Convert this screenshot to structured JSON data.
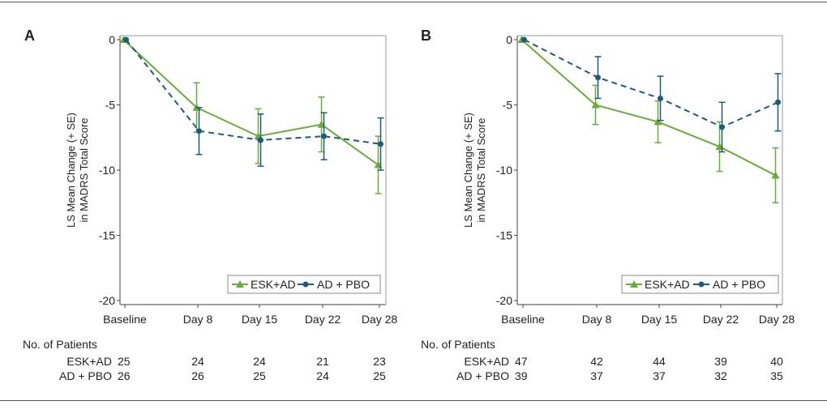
{
  "legend_labels": {
    "esk": "ESK+AD",
    "pbo": "AD + PBO"
  },
  "colors": {
    "esk": "#6aac3a",
    "pbo": "#1f5a7a",
    "axis": "#444444"
  },
  "patients_header": "No. of Patients",
  "chart_data": [
    {
      "panel": "A",
      "type": "line",
      "ylabel_line1": "LS Mean Change (+ SE)",
      "ylabel_line2": "in MADRS Total Score",
      "categories": [
        "Baseline",
        "Day 8",
        "Day 15",
        "Day 22",
        "Day 28"
      ],
      "ylim": [
        -20,
        0
      ],
      "yticks": [
        0,
        -5,
        -10,
        -15,
        -20
      ],
      "ytick_labels": [
        "0",
        "-5",
        "-10",
        "-15",
        "-20"
      ],
      "grid": false,
      "legend_position": "bottom-right",
      "series": [
        {
          "name": "ESK+AD",
          "key": "esk",
          "marker": "triangle",
          "dash": "solid",
          "values": [
            0,
            -5.2,
            -7.4,
            -6.5,
            -9.6
          ],
          "se": [
            0,
            1.9,
            2.1,
            2.1,
            2.2
          ]
        },
        {
          "name": "AD + PBO",
          "key": "pbo",
          "marker": "circle",
          "dash": "dashed",
          "values": [
            0,
            -7.0,
            -7.7,
            -7.4,
            -8.0
          ],
          "se": [
            0,
            1.8,
            2.0,
            1.8,
            2.0
          ]
        }
      ],
      "patients": [
        {
          "label": "ESK+AD",
          "counts": [
            "25",
            "24",
            "24",
            "21",
            "23"
          ]
        },
        {
          "label": "AD + PBO",
          "counts": [
            "26",
            "26",
            "25",
            "24",
            "25"
          ]
        }
      ]
    },
    {
      "panel": "B",
      "type": "line",
      "ylabel_line1": "LS Mean Change (+ SE)",
      "ylabel_line2": "in MADRS Total Score",
      "categories": [
        "Baseline",
        "Day 8",
        "Day 15",
        "Day 22",
        "Day 28"
      ],
      "ylim": [
        -20,
        0
      ],
      "yticks": [
        0,
        -5,
        -10,
        -15,
        -20
      ],
      "ytick_labels": [
        "0",
        "-5",
        "-10",
        "-15",
        "-20"
      ],
      "grid": false,
      "legend_position": "bottom-right",
      "series": [
        {
          "name": "ESK+AD",
          "key": "esk",
          "marker": "triangle",
          "dash": "solid",
          "values": [
            0,
            -5.0,
            -6.3,
            -8.2,
            -10.4
          ],
          "se": [
            0,
            1.5,
            1.6,
            1.9,
            2.1
          ]
        },
        {
          "name": "AD + PBO",
          "key": "pbo",
          "marker": "circle",
          "dash": "dashed",
          "values": [
            0,
            -2.9,
            -4.5,
            -6.7,
            -4.8
          ],
          "se": [
            0,
            1.6,
            1.7,
            1.9,
            2.2
          ]
        }
      ],
      "patients": [
        {
          "label": "ESK+AD",
          "counts": [
            "47",
            "42",
            "44",
            "39",
            "40"
          ]
        },
        {
          "label": "AD + PBO",
          "counts": [
            "39",
            "37",
            "37",
            "32",
            "35"
          ]
        }
      ]
    }
  ]
}
